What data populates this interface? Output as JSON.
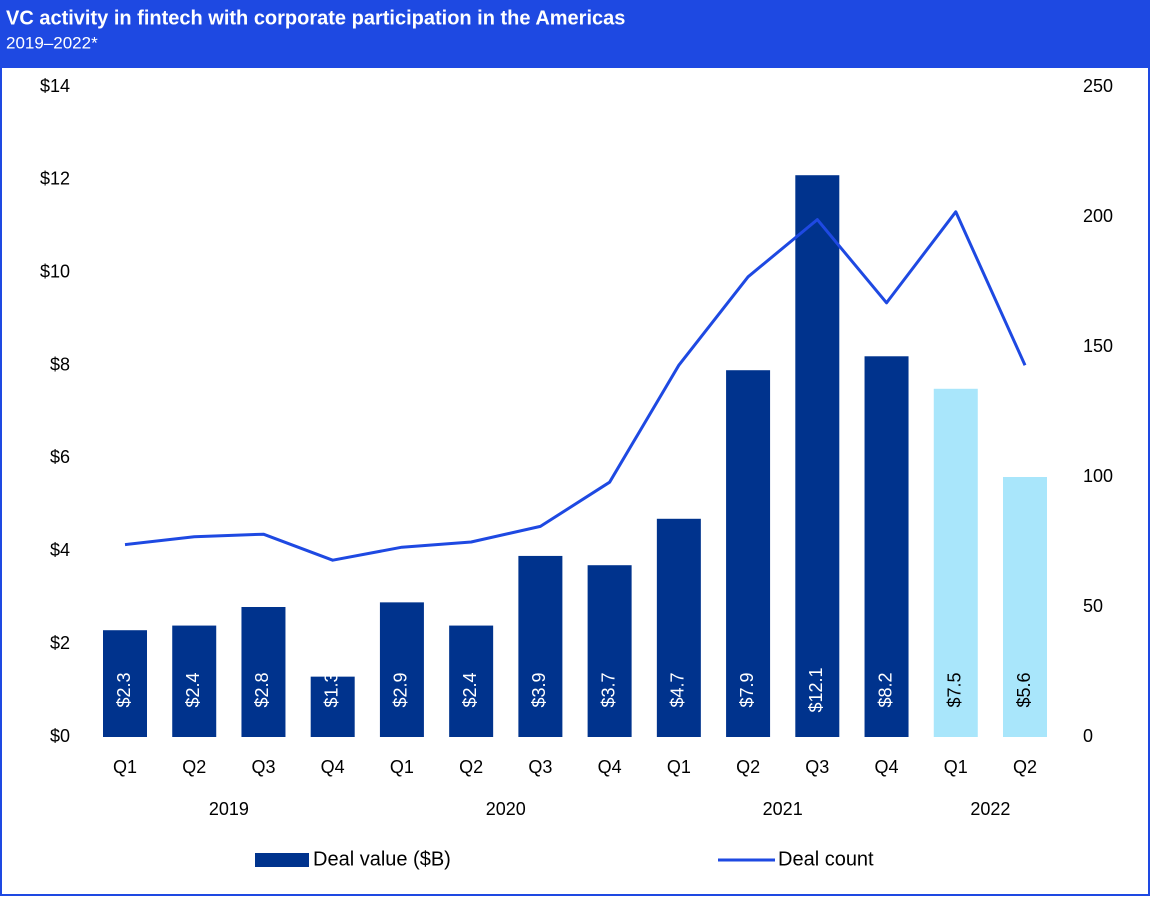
{
  "chart_data": {
    "type": "bar_line",
    "title": "VC activity in fintech with corporate participation in the Americas",
    "subtitle": "2019–2022*",
    "groups": [
      {
        "label": "2019",
        "categories": [
          "Q1",
          "Q2",
          "Q3",
          "Q4"
        ]
      },
      {
        "label": "2020",
        "categories": [
          "Q1",
          "Q2",
          "Q3",
          "Q4"
        ]
      },
      {
        "label": "2021",
        "categories": [
          "Q1",
          "Q2",
          "Q3",
          "Q4"
        ]
      },
      {
        "label": "2022",
        "categories": [
          "Q1",
          "Q2"
        ]
      }
    ],
    "series": [
      {
        "name": "Deal value ($B)",
        "type": "bar",
        "axis": "y",
        "color": "#00338d",
        "colors": [
          "#00338d",
          "#00338d",
          "#00338d",
          "#00338d",
          "#00338d",
          "#00338d",
          "#00338d",
          "#00338d",
          "#00338d",
          "#00338d",
          "#00338d",
          "#00338d",
          "#a9e6fb",
          "#a9e6fb"
        ],
        "values": [
          2.3,
          2.4,
          2.8,
          1.3,
          2.9,
          2.4,
          3.9,
          3.7,
          4.7,
          7.9,
          12.1,
          8.2,
          7.5,
          5.6
        ],
        "value_labels": [
          "$2.3",
          "$2.4",
          "$2.8",
          "$1.3",
          "$2.9",
          "$2.4",
          "$3.9",
          "$3.7",
          "$4.7",
          "$7.9",
          "$12.1",
          "$8.2",
          "$7.5",
          "$5.6"
        ]
      },
      {
        "name": "Deal count",
        "type": "line",
        "axis": "y2",
        "color": "#1e49e2",
        "values": [
          74,
          77,
          78,
          68,
          73,
          75,
          81,
          98,
          143,
          177,
          199,
          167,
          202,
          143
        ]
      }
    ],
    "ylim": [
      0,
      14
    ],
    "yticks": [
      {
        "value": 0,
        "label": "$0"
      },
      {
        "value": 2,
        "label": "$2"
      },
      {
        "value": 4,
        "label": "$4"
      },
      {
        "value": 6,
        "label": "$6"
      },
      {
        "value": 8,
        "label": "$8"
      },
      {
        "value": 10,
        "label": "$10"
      },
      {
        "value": 12,
        "label": "$12"
      },
      {
        "value": 14,
        "label": "$14"
      }
    ],
    "y2lim": [
      0,
      250
    ],
    "y2ticks": [
      0,
      50,
      100,
      150,
      200,
      250
    ],
    "legend": "bottom"
  }
}
